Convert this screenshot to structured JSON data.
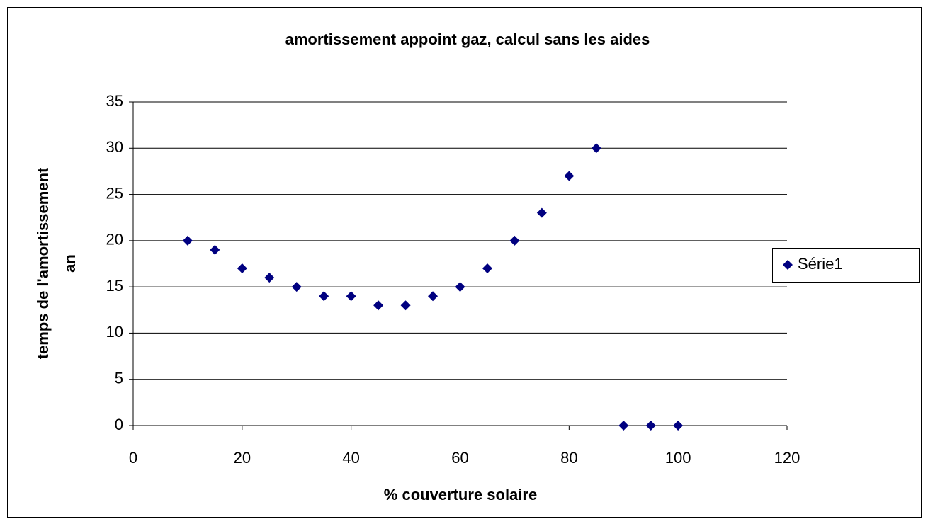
{
  "chart_data": {
    "type": "scatter",
    "title": "amortissement appoint gaz, calcul sans les aides",
    "x_label": "% couverture solaire",
    "y_label": [
      "temps de l'amortissement",
      "an"
    ],
    "series": [
      {
        "name": "Série1",
        "color": "#000080",
        "x": [
          10,
          15,
          20,
          25,
          30,
          35,
          40,
          45,
          50,
          55,
          60,
          65,
          70,
          75,
          80,
          85,
          90,
          95,
          100
        ],
        "values": [
          20,
          19,
          17,
          16,
          15,
          14,
          14,
          13,
          13,
          14,
          15,
          17,
          20,
          23,
          27,
          30,
          0,
          0,
          0
        ]
      }
    ],
    "xlim": [
      0,
      120
    ],
    "xticks": [
      0,
      20,
      40,
      60,
      80,
      100,
      120
    ],
    "ylim": [
      0,
      35
    ],
    "yticks": [
      0,
      5,
      10,
      15,
      20,
      25,
      30,
      35
    ],
    "grid": true,
    "legend": "right"
  }
}
